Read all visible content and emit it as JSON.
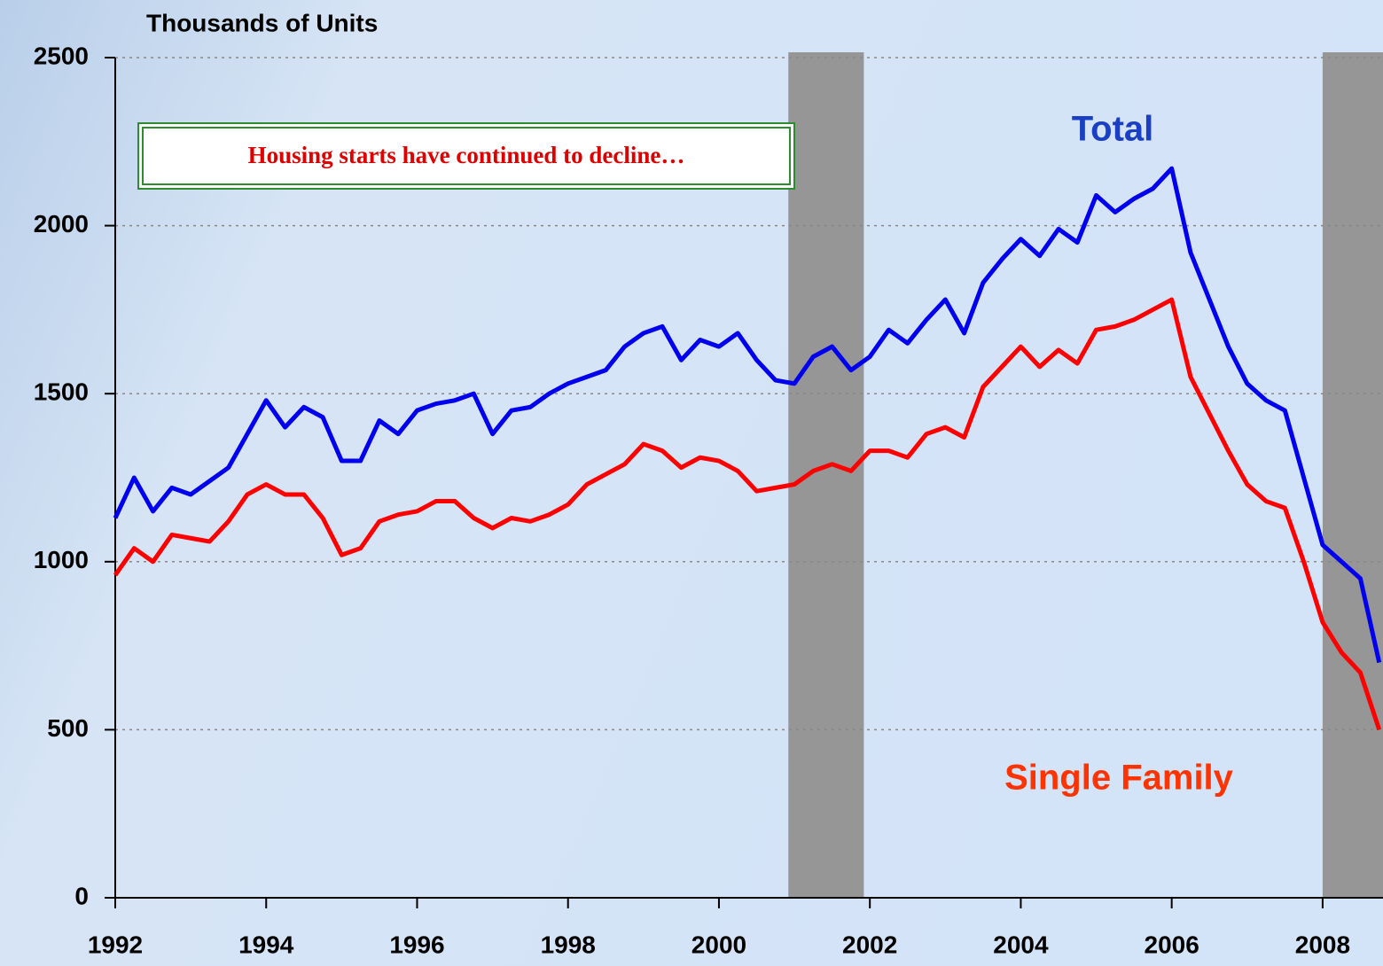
{
  "chart_data": {
    "type": "line",
    "y_axis_label": "Thousands of Units",
    "annotation": "Housing starts have continued to decline…",
    "x": [
      1992,
      1992.25,
      1992.5,
      1992.75,
      1993,
      1993.25,
      1993.5,
      1993.75,
      1994,
      1994.25,
      1994.5,
      1994.75,
      1995,
      1995.25,
      1995.5,
      1995.75,
      1996,
      1996.25,
      1996.5,
      1996.75,
      1997,
      1997.25,
      1997.5,
      1997.75,
      1998,
      1998.25,
      1998.5,
      1998.75,
      1999,
      1999.25,
      1999.5,
      1999.75,
      2000,
      2000.25,
      2000.5,
      2000.75,
      2001,
      2001.25,
      2001.5,
      2001.75,
      2002,
      2002.25,
      2002.5,
      2002.75,
      2003,
      2003.25,
      2003.5,
      2003.75,
      2004,
      2004.25,
      2004.5,
      2004.75,
      2005,
      2005.25,
      2005.5,
      2005.75,
      2006,
      2006.25,
      2006.5,
      2006.75,
      2007,
      2007.25,
      2007.5,
      2007.75,
      2008,
      2008.25,
      2008.5,
      2008.75
    ],
    "series": [
      {
        "name": "Total",
        "color": "#0000ee",
        "label_color": "#1a3fc4",
        "values": [
          1130,
          1250,
          1150,
          1220,
          1200,
          1240,
          1280,
          1380,
          1480,
          1400,
          1460,
          1430,
          1300,
          1300,
          1420,
          1380,
          1450,
          1470,
          1480,
          1500,
          1380,
          1450,
          1460,
          1500,
          1530,
          1550,
          1570,
          1640,
          1680,
          1700,
          1600,
          1660,
          1640,
          1680,
          1600,
          1540,
          1530,
          1610,
          1640,
          1570,
          1610,
          1690,
          1650,
          1720,
          1780,
          1680,
          1830,
          1900,
          1960,
          1910,
          1990,
          1950,
          2090,
          2040,
          2080,
          2110,
          2170,
          1920,
          1780,
          1640,
          1530,
          1480,
          1450,
          1250,
          1050,
          1000,
          950,
          700
        ]
      },
      {
        "name": "Single Family",
        "color": "#ff0000",
        "label_color": "#ff3300",
        "values": [
          960,
          1040,
          1000,
          1080,
          1070,
          1060,
          1120,
          1200,
          1230,
          1200,
          1200,
          1130,
          1020,
          1040,
          1120,
          1140,
          1150,
          1180,
          1180,
          1130,
          1100,
          1130,
          1120,
          1140,
          1170,
          1230,
          1260,
          1290,
          1350,
          1330,
          1280,
          1310,
          1300,
          1270,
          1210,
          1220,
          1230,
          1270,
          1290,
          1270,
          1330,
          1330,
          1310,
          1380,
          1400,
          1370,
          1520,
          1580,
          1640,
          1580,
          1630,
          1590,
          1690,
          1700,
          1720,
          1750,
          1780,
          1550,
          1440,
          1330,
          1230,
          1180,
          1160,
          1000,
          820,
          730,
          670,
          500
        ]
      }
    ],
    "recessions": [
      [
        2000.92,
        2001.92
      ],
      [
        2008,
        2008.8
      ]
    ],
    "recession_color": "#969696",
    "xlim": [
      1992,
      2008.8
    ],
    "xticks": [
      1992,
      1994,
      1996,
      1998,
      2000,
      2002,
      2004,
      2006,
      2008
    ],
    "ylim": [
      0,
      2500
    ],
    "yticks": [
      0,
      500,
      1000,
      1500,
      2000,
      2500
    ],
    "grid": true
  }
}
